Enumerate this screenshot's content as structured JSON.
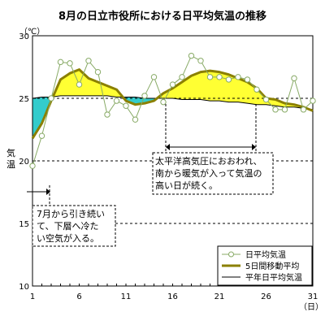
{
  "chart_data": {
    "type": "line",
    "title": "8月の日立市役所における日平均気温の推移",
    "ylabel": "気温",
    "y_unit": "（℃）",
    "x_unit": "（日）",
    "ylim": [
      10,
      30
    ],
    "xlim": [
      1,
      31
    ],
    "y_ticks": [
      10,
      15,
      20,
      25,
      30
    ],
    "x_ticks": [
      1,
      6,
      11,
      16,
      21,
      26,
      31
    ],
    "grid": "horizontal dashed at 15, 20, 25",
    "legend_position": "bottom-right",
    "x": [
      1,
      2,
      3,
      4,
      5,
      6,
      7,
      8,
      9,
      10,
      11,
      12,
      13,
      14,
      15,
      16,
      17,
      18,
      19,
      20,
      21,
      22,
      23,
      24,
      25,
      26,
      27,
      28,
      29,
      30,
      31
    ],
    "series": [
      {
        "name": "日平均気温",
        "color": "#88aa66",
        "marker": "circle-open",
        "values": [
          19.6,
          22.0,
          25.0,
          27.9,
          27.8,
          26.1,
          28.0,
          27.1,
          23.7,
          24.8,
          24.4,
          23.3,
          25.2,
          26.7,
          24.7,
          26.1,
          26.7,
          28.4,
          28.0,
          26.7,
          26.7,
          26.5,
          26.7,
          26.5,
          25.7,
          24.9,
          24.1,
          24.1,
          26.6,
          24.1,
          24.8
        ]
      },
      {
        "name": "5日間移動平均",
        "color": "#8b8000",
        "values": [
          21.8,
          23.0,
          24.8,
          26.5,
          27.0,
          27.3,
          26.6,
          26.3,
          26.0,
          25.7,
          24.8,
          24.5,
          24.6,
          24.8,
          25.4,
          25.8,
          26.3,
          26.8,
          27.1,
          27.2,
          27.1,
          26.9,
          26.6,
          26.3,
          25.8,
          25.0,
          24.9,
          24.6,
          24.5,
          24.3,
          24.0
        ]
      },
      {
        "name": "平年日平均気温",
        "color": "#000000",
        "values": [
          25.0,
          25.1,
          25.1,
          25.2,
          25.2,
          25.2,
          25.2,
          25.2,
          25.2,
          25.1,
          25.1,
          25.1,
          25.0,
          25.0,
          25.0,
          25.0,
          24.9,
          24.9,
          24.9,
          24.8,
          24.8,
          24.7,
          24.7,
          24.6,
          24.5,
          24.5,
          24.4,
          24.3,
          24.3,
          24.2,
          24.1
        ]
      }
    ],
    "fill_colors": {
      "above_normal": "#ffff33",
      "below_normal": "#33cccc"
    },
    "annotations": [
      {
        "lines": [
          "7月から引き続い",
          "て、下層へ冷た",
          "い空気が入る。"
        ]
      },
      {
        "lines": [
          "太平洋高気圧におおわれ、",
          "南から暖気が入って気温の",
          "高い日が続く。"
        ]
      }
    ]
  }
}
